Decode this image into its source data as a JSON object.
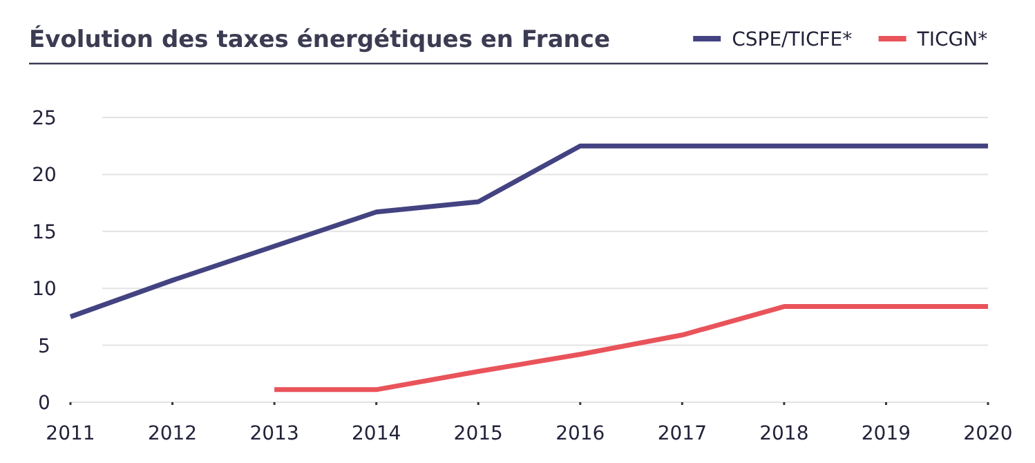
{
  "chart_data": {
    "type": "line",
    "title": "Évolution des taxes énergétiques en France",
    "x": [
      2011,
      2012,
      2013,
      2014,
      2015,
      2016,
      2017,
      2018,
      2019,
      2020
    ],
    "series": [
      {
        "name": "CSPE/TICFE*",
        "color": "#434382",
        "values": [
          7.5,
          10.7,
          13.7,
          16.7,
          17.6,
          22.5,
          22.5,
          22.5,
          22.5,
          22.5
        ]
      },
      {
        "name": "TICGN*",
        "color": "#e9535a",
        "values": [
          null,
          null,
          1.1,
          1.1,
          2.7,
          4.2,
          5.9,
          8.4,
          8.4,
          8.4
        ]
      }
    ],
    "xlim": [
      2011,
      2020
    ],
    "xticks": [
      2011,
      2012,
      2013,
      2014,
      2015,
      2016,
      2017,
      2018,
      2019,
      2020
    ],
    "ylim": [
      0,
      25
    ],
    "yticks": [
      0,
      5,
      10,
      15,
      20,
      25
    ],
    "grid": "y",
    "legend": "top right",
    "marker": "none",
    "line_style": "solid"
  }
}
